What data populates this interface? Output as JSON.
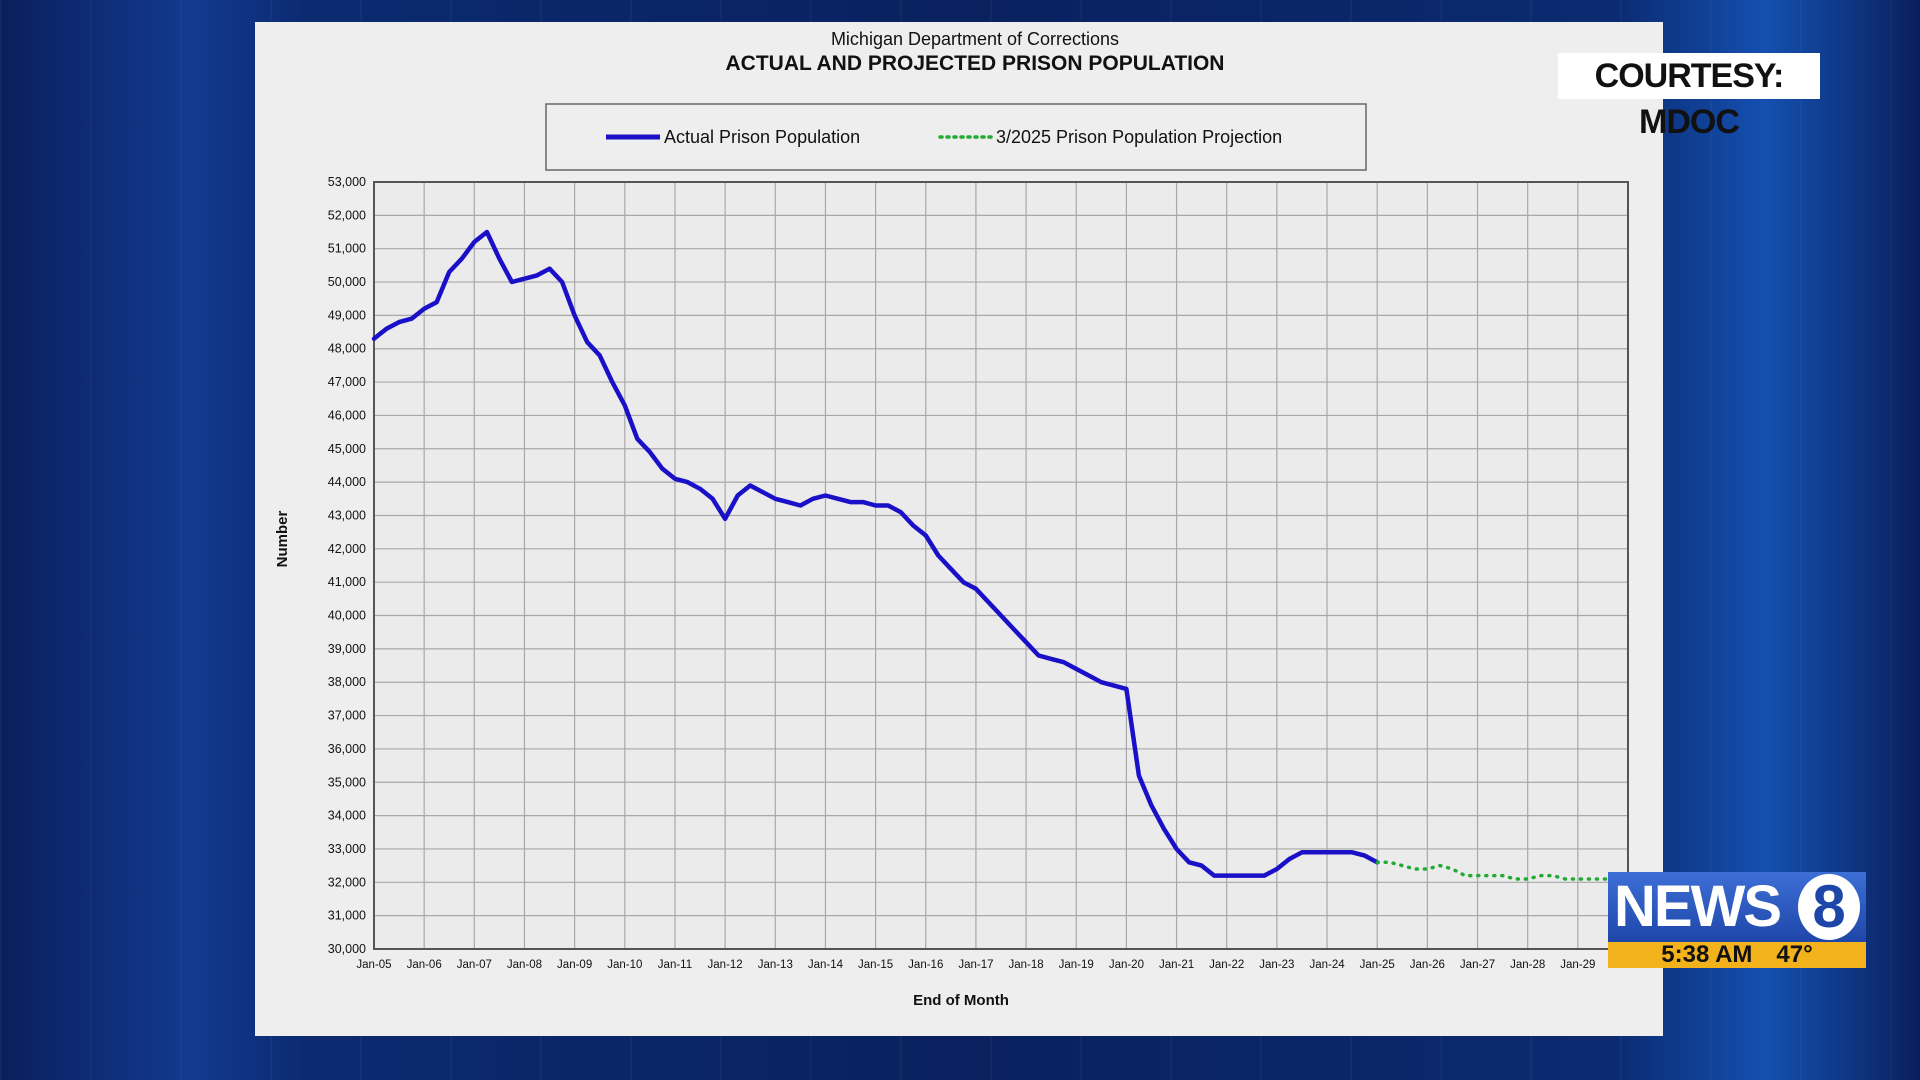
{
  "broadcast": {
    "courtesy": "COURTESY: MDOC",
    "station": "NEWS",
    "station_number": "8",
    "time": "5:38 AM",
    "temperature": "47°"
  },
  "chart_data": {
    "type": "line",
    "title": "Michigan Department of Corrections",
    "subtitle": "ACTUAL AND PROJECTED PRISON POPULATION",
    "xlabel": "End of Month",
    "ylabel": "Number",
    "ylim": [
      30000,
      53000
    ],
    "y_ticks": [
      "30,000",
      "31,000",
      "32,000",
      "33,000",
      "34,000",
      "35,000",
      "36,000",
      "37,000",
      "38,000",
      "39,000",
      "40,000",
      "41,000",
      "42,000",
      "43,000",
      "44,000",
      "45,000",
      "46,000",
      "47,000",
      "48,000",
      "49,000",
      "50,000",
      "51,000",
      "52,000",
      "53,000"
    ],
    "x_ticks": [
      "Jan-05",
      "Jan-06",
      "Jan-07",
      "Jan-08",
      "Jan-09",
      "Jan-10",
      "Jan-11",
      "Jan-12",
      "Jan-13",
      "Jan-14",
      "Jan-15",
      "Jan-16",
      "Jan-17",
      "Jan-18",
      "Jan-19",
      "Jan-20",
      "Jan-21",
      "Jan-22",
      "Jan-23",
      "Jan-24",
      "Jan-25",
      "Jan-26",
      "Jan-27",
      "Jan-28",
      "Jan-29"
    ],
    "x_range": [
      "2005-01",
      "2030-01"
    ],
    "grid": true,
    "legend_position": "top",
    "series": [
      {
        "name": "Actual Prison Population",
        "color": "#1a10c8",
        "style": "solid",
        "points": [
          [
            "2005-01",
            48300
          ],
          [
            "2005-04",
            48600
          ],
          [
            "2005-07",
            48800
          ],
          [
            "2005-10",
            48900
          ],
          [
            "2006-01",
            49200
          ],
          [
            "2006-04",
            49400
          ],
          [
            "2006-07",
            50300
          ],
          [
            "2006-10",
            50700
          ],
          [
            "2007-01",
            51200
          ],
          [
            "2007-04",
            51500
          ],
          [
            "2007-07",
            50700
          ],
          [
            "2007-10",
            50000
          ],
          [
            "2008-01",
            50100
          ],
          [
            "2008-04",
            50200
          ],
          [
            "2008-07",
            50400
          ],
          [
            "2008-10",
            50000
          ],
          [
            "2009-01",
            49000
          ],
          [
            "2009-04",
            48200
          ],
          [
            "2009-07",
            47800
          ],
          [
            "2009-10",
            47000
          ],
          [
            "2010-01",
            46300
          ],
          [
            "2010-04",
            45300
          ],
          [
            "2010-07",
            44900
          ],
          [
            "2010-10",
            44400
          ],
          [
            "2011-01",
            44100
          ],
          [
            "2011-04",
            44000
          ],
          [
            "2011-07",
            43800
          ],
          [
            "2011-10",
            43500
          ],
          [
            "2012-01",
            42900
          ],
          [
            "2012-04",
            43600
          ],
          [
            "2012-07",
            43900
          ],
          [
            "2012-10",
            43700
          ],
          [
            "2013-01",
            43500
          ],
          [
            "2013-04",
            43400
          ],
          [
            "2013-07",
            43300
          ],
          [
            "2013-10",
            43500
          ],
          [
            "2014-01",
            43600
          ],
          [
            "2014-04",
            43500
          ],
          [
            "2014-07",
            43400
          ],
          [
            "2014-10",
            43400
          ],
          [
            "2015-01",
            43300
          ],
          [
            "2015-04",
            43300
          ],
          [
            "2015-07",
            43100
          ],
          [
            "2015-10",
            42700
          ],
          [
            "2016-01",
            42400
          ],
          [
            "2016-04",
            41800
          ],
          [
            "2016-07",
            41400
          ],
          [
            "2016-10",
            41000
          ],
          [
            "2017-01",
            40800
          ],
          [
            "2017-04",
            40400
          ],
          [
            "2017-07",
            40000
          ],
          [
            "2017-10",
            39600
          ],
          [
            "2018-01",
            39200
          ],
          [
            "2018-04",
            38800
          ],
          [
            "2018-07",
            38700
          ],
          [
            "2018-10",
            38600
          ],
          [
            "2019-01",
            38400
          ],
          [
            "2019-04",
            38200
          ],
          [
            "2019-07",
            38000
          ],
          [
            "2019-10",
            37900
          ],
          [
            "2020-01",
            37800
          ],
          [
            "2020-04",
            35200
          ],
          [
            "2020-07",
            34300
          ],
          [
            "2020-10",
            33600
          ],
          [
            "2021-01",
            33000
          ],
          [
            "2021-04",
            32600
          ],
          [
            "2021-07",
            32500
          ],
          [
            "2021-10",
            32200
          ],
          [
            "2022-01",
            32200
          ],
          [
            "2022-04",
            32200
          ],
          [
            "2022-07",
            32200
          ],
          [
            "2022-10",
            32200
          ],
          [
            "2023-01",
            32400
          ],
          [
            "2023-04",
            32700
          ],
          [
            "2023-07",
            32900
          ],
          [
            "2023-10",
            32900
          ],
          [
            "2024-01",
            32900
          ],
          [
            "2024-04",
            32900
          ],
          [
            "2024-07",
            32900
          ],
          [
            "2024-10",
            32800
          ],
          [
            "2025-01",
            32600
          ]
        ]
      },
      {
        "name": "3/2025 Prison Population Projection",
        "color": "#22aa33",
        "style": "dotted",
        "points": [
          [
            "2025-01",
            32600
          ],
          [
            "2025-04",
            32600
          ],
          [
            "2025-07",
            32500
          ],
          [
            "2025-10",
            32400
          ],
          [
            "2026-01",
            32400
          ],
          [
            "2026-04",
            32500
          ],
          [
            "2026-07",
            32400
          ],
          [
            "2026-10",
            32200
          ],
          [
            "2027-01",
            32200
          ],
          [
            "2027-04",
            32200
          ],
          [
            "2027-07",
            32200
          ],
          [
            "2027-10",
            32100
          ],
          [
            "2028-01",
            32100
          ],
          [
            "2028-04",
            32200
          ],
          [
            "2028-07",
            32200
          ],
          [
            "2028-10",
            32100
          ],
          [
            "2029-01",
            32100
          ],
          [
            "2029-07",
            32100
          ],
          [
            "2029-12",
            32100
          ]
        ]
      }
    ]
  }
}
